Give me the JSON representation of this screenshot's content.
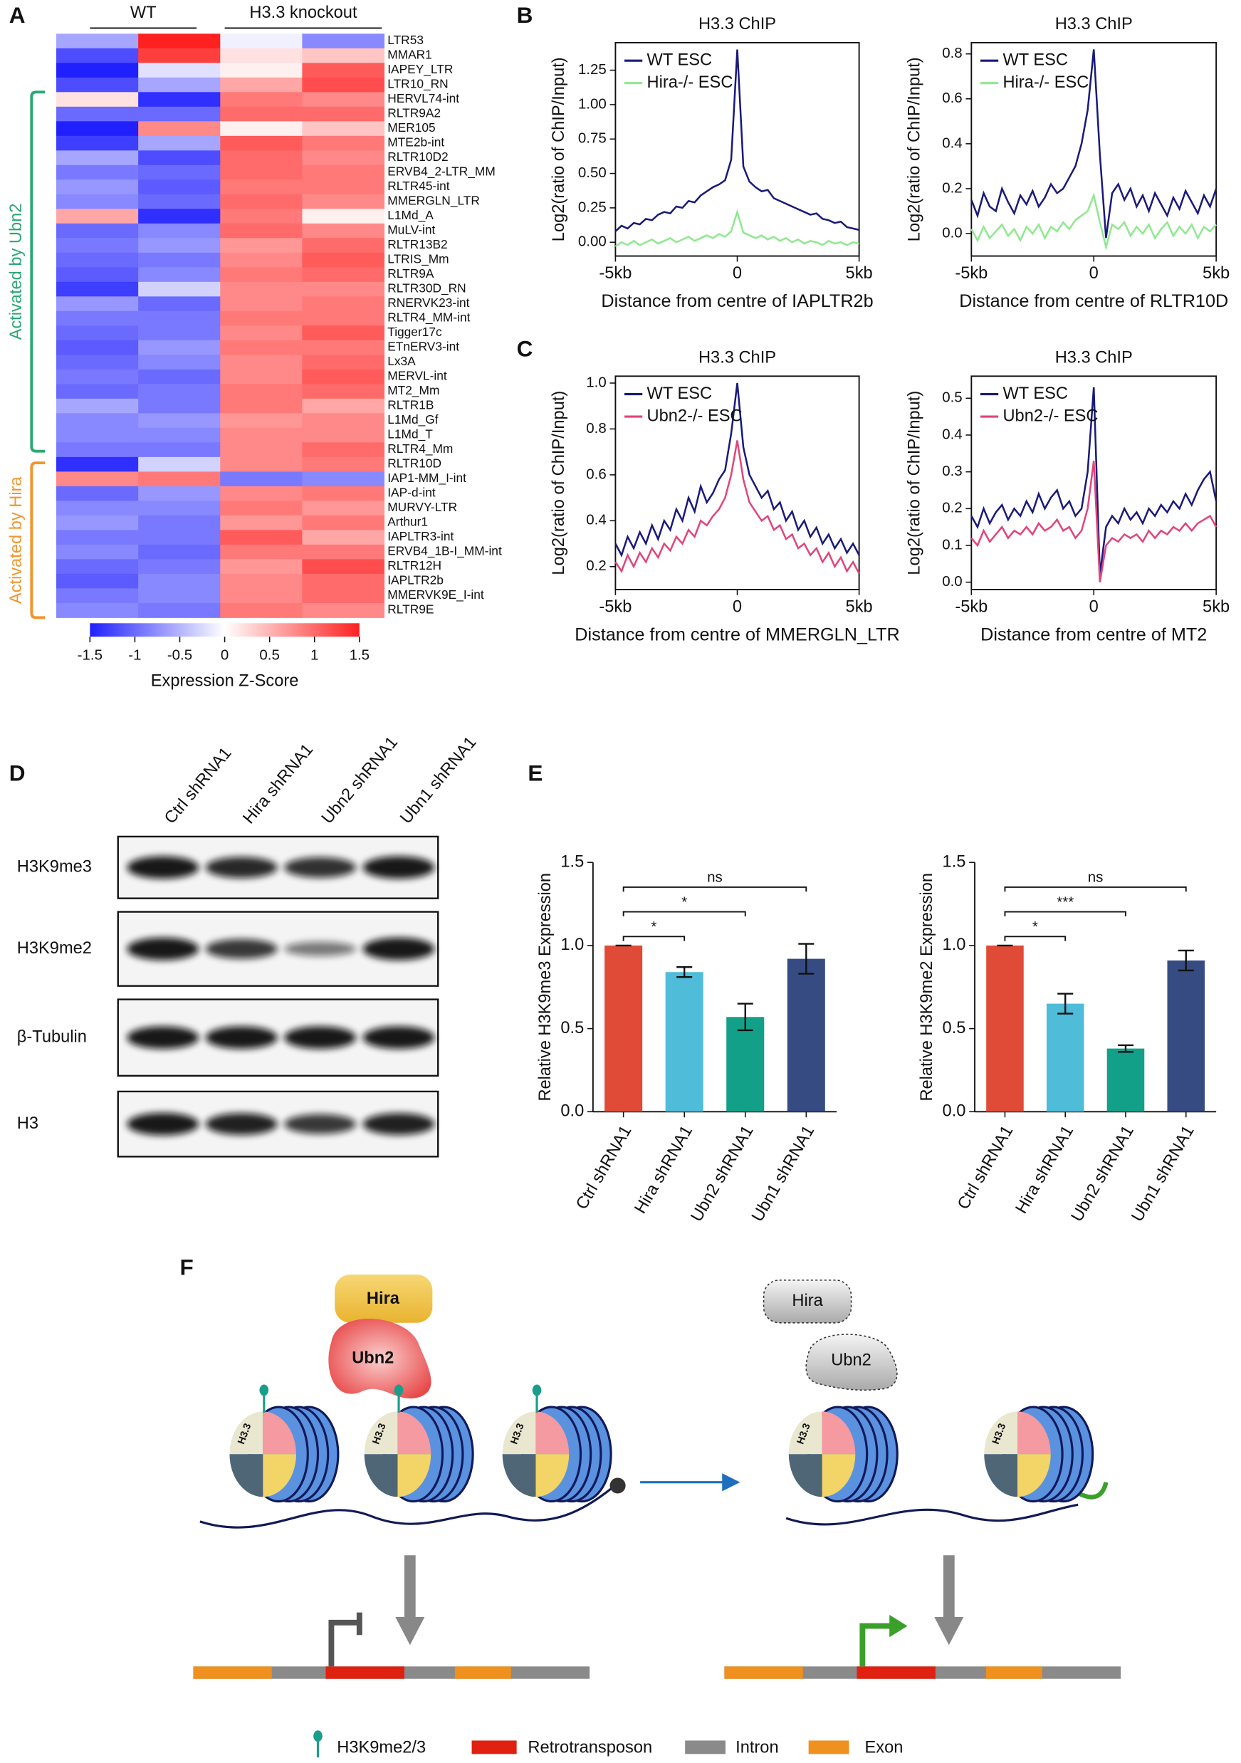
{
  "panel_labels": [
    "A",
    "B",
    "C",
    "D",
    "E",
    "F"
  ],
  "chart_data": [
    {
      "type": "heatmap",
      "column_groups": [
        "WT",
        "H3.3 knockout"
      ],
      "categories": [
        "LTR53",
        "MMAR1",
        "IAPEY_LTR",
        "LTR10_RN",
        "HERVL74-int",
        "RLTR9A2",
        "MER105",
        "MTE2b-int",
        "RLTR10D2",
        "ERVB4_2-LTR_MM",
        "RLTR45-int",
        "MMERGLN_LTR",
        "L1Md_A",
        "MuLV-int",
        "RLTR13B2",
        "LTRIS_Mm",
        "RLTR9A",
        "RLTR30D_RN",
        "RNERVK23-int",
        "RLTR4_MM-int",
        "Tigger17c",
        "ETnERV3-int",
        "Lx3A",
        "MERVL-int",
        "MT2_Mm",
        "RLTR1B",
        "L1Md_Gf",
        "L1Md_T",
        "RLTR4_Mm",
        "RLTR10D",
        "IAP1-MM_I-int",
        "IAP-d-int",
        "MURVY-LTR",
        "Arthur1",
        "IAPLTR3-int",
        "ERVB4_1B-I_MM-int",
        "RLTR12H",
        "IAPLTR2b",
        "MMERVK9E_I-int",
        "RLTR9E"
      ],
      "values": [
        [
          -0.6,
          1.5,
          -0.1,
          -0.8
        ],
        [
          -1.2,
          1.3,
          0.2,
          0.4
        ],
        [
          -1.5,
          -0.2,
          0.1,
          1.1
        ],
        [
          -1.2,
          -0.6,
          0.6,
          1.2
        ],
        [
          0.2,
          -1.4,
          0.9,
          0.8
        ],
        [
          -1.0,
          -1.0,
          1.0,
          1.0
        ],
        [
          -1.5,
          0.8,
          0.1,
          0.4
        ],
        [
          -1.3,
          -0.6,
          1.1,
          0.9
        ],
        [
          -0.6,
          -1.2,
          1.0,
          0.8
        ],
        [
          -0.9,
          -1.0,
          1.0,
          0.9
        ],
        [
          -0.7,
          -1.1,
          0.9,
          0.9
        ],
        [
          -0.8,
          -1.0,
          1.0,
          0.8
        ],
        [
          0.6,
          -1.4,
          0.9,
          0.1
        ],
        [
          -1.0,
          -0.8,
          1.0,
          0.8
        ],
        [
          -0.9,
          -0.7,
          0.7,
          1.0
        ],
        [
          -1.0,
          -0.9,
          0.8,
          1.1
        ],
        [
          -1.1,
          -0.8,
          0.9,
          1.0
        ],
        [
          -1.3,
          -0.3,
          0.8,
          0.8
        ],
        [
          -0.7,
          -1.0,
          0.8,
          0.9
        ],
        [
          -0.9,
          -0.9,
          0.9,
          0.9
        ],
        [
          -1.0,
          -0.9,
          0.8,
          1.1
        ],
        [
          -1.1,
          -0.7,
          0.9,
          0.9
        ],
        [
          -1.0,
          -0.8,
          0.8,
          1.0
        ],
        [
          -0.9,
          -1.0,
          0.8,
          1.1
        ],
        [
          -1.0,
          -0.9,
          0.9,
          1.0
        ],
        [
          -0.6,
          -0.9,
          0.9,
          0.6
        ],
        [
          -0.8,
          -0.7,
          0.7,
          0.8
        ],
        [
          -0.8,
          -0.8,
          0.8,
          0.8
        ],
        [
          -0.9,
          -0.9,
          0.8,
          1.0
        ],
        [
          -1.4,
          -0.3,
          0.8,
          0.9
        ],
        [
          0.8,
          0.9,
          -0.9,
          -0.8
        ],
        [
          -1.0,
          -0.7,
          0.8,
          0.9
        ],
        [
          -0.8,
          -0.8,
          0.9,
          0.7
        ],
        [
          -0.7,
          -0.9,
          0.7,
          0.9
        ],
        [
          -0.9,
          -0.9,
          1.1,
          0.6
        ],
        [
          -0.8,
          -1.0,
          0.9,
          0.9
        ],
        [
          -1.0,
          -0.9,
          0.7,
          1.2
        ],
        [
          -1.1,
          -0.8,
          0.8,
          1.0
        ],
        [
          -0.9,
          -0.8,
          0.8,
          1.0
        ],
        [
          -0.8,
          -0.9,
          0.9,
          0.8
        ]
      ],
      "groups": [
        {
          "label": "Activated by Ubn2",
          "color": "#2aa876"
        },
        {
          "label": "Activated by Hira",
          "color": "#f0962e"
        }
      ],
      "colorscale": [
        "#2020ff",
        "#ffffff",
        "#ff2020"
      ],
      "zlim": [
        -1.5,
        1.5
      ],
      "zticks": [
        -1.5,
        -1,
        -0.5,
        0,
        0.5,
        1,
        1.5
      ],
      "colorbar_title": "Expression Z-Score"
    },
    {
      "type": "line",
      "title": "H3.3 ChIP",
      "xlabel": "Distance from centre of IAPLTR2b",
      "ylabel": "Log2(ratio of ChIP/Input)",
      "legend": "upper left",
      "xlim": [
        -5,
        5
      ],
      "xticks": [
        {
          "value": -5,
          "label": "-5kb"
        },
        0,
        {
          "value": 5,
          "label": "5kb"
        }
      ],
      "ylim": [
        -0.1,
        1.45
      ],
      "yticks": [
        {
          "value": 0,
          "label": "0.00"
        },
        {
          "value": 0.25,
          "label": "0.25"
        },
        {
          "value": 0.5,
          "label": "0.50"
        },
        {
          "value": 0.75,
          "label": "0.75"
        },
        {
          "value": 1,
          "label": "1.00"
        },
        {
          "value": 1.25,
          "label": "1.25"
        }
      ],
      "x": [
        -5,
        -4.75,
        -4.5,
        -4.25,
        -4,
        -3.75,
        -3.5,
        -3.25,
        -3,
        -2.75,
        -2.5,
        -2.25,
        -2,
        -1.75,
        -1.5,
        -1.25,
        -1,
        -0.75,
        -0.5,
        -0.25,
        0,
        0.25,
        0.5,
        0.75,
        1,
        1.25,
        1.5,
        1.75,
        2,
        2.25,
        2.5,
        2.75,
        3,
        3.25,
        3.5,
        3.75,
        4,
        4.25,
        4.5,
        4.75,
        5
      ],
      "series": [
        {
          "name": "WT ESC",
          "color": "#1a1a7a",
          "values": [
            0.08,
            0.12,
            0.1,
            0.14,
            0.13,
            0.17,
            0.16,
            0.2,
            0.22,
            0.21,
            0.26,
            0.25,
            0.3,
            0.29,
            0.34,
            0.37,
            0.4,
            0.42,
            0.45,
            0.6,
            1.4,
            0.55,
            0.44,
            0.4,
            0.37,
            0.38,
            0.32,
            0.3,
            0.28,
            0.26,
            0.24,
            0.22,
            0.2,
            0.21,
            0.17,
            0.16,
            0.14,
            0.15,
            0.11,
            0.1,
            0.09
          ]
        },
        {
          "name": "Hira-/- ESC",
          "color": "#8fe88f",
          "values": [
            -0.03,
            0.0,
            -0.02,
            0.01,
            -0.02,
            0.0,
            0.02,
            -0.01,
            0.01,
            0.03,
            0.0,
            0.02,
            0.04,
            0.01,
            0.03,
            0.05,
            0.03,
            0.06,
            0.04,
            0.08,
            0.22,
            0.07,
            0.05,
            0.03,
            0.05,
            0.02,
            0.04,
            0.01,
            0.03,
            0.0,
            0.02,
            -0.01,
            0.01,
            0.0,
            -0.02,
            0.01,
            -0.01,
            0.0,
            -0.02,
            0.0,
            -0.01
          ]
        }
      ]
    },
    {
      "type": "line",
      "title": "H3.3 ChIP",
      "xlabel": "Distance from centre of RLTR10D",
      "ylabel": "Log2(ratio of ChIP/Input)",
      "legend": "upper left",
      "xlim": [
        -5,
        5
      ],
      "xticks": [
        {
          "value": -5,
          "label": "-5kb"
        },
        0,
        {
          "value": 5,
          "label": "5kb"
        }
      ],
      "ylim": [
        -0.1,
        0.85
      ],
      "yticks": [
        {
          "value": 0,
          "label": "0.0"
        },
        0.2,
        0.4,
        0.6,
        0.8
      ],
      "x": [
        -5,
        -4.75,
        -4.5,
        -4.25,
        -4,
        -3.75,
        -3.5,
        -3.25,
        -3,
        -2.75,
        -2.5,
        -2.25,
        -2,
        -1.75,
        -1.5,
        -1.25,
        -1,
        -0.75,
        -0.5,
        -0.25,
        0,
        0.25,
        0.5,
        0.75,
        1,
        1.25,
        1.5,
        1.75,
        2,
        2.25,
        2.5,
        2.75,
        3,
        3.25,
        3.5,
        3.75,
        4,
        4.25,
        4.5,
        4.75,
        5
      ],
      "series": [
        {
          "name": "WT ESC",
          "color": "#1a1a7a",
          "values": [
            0.15,
            0.08,
            0.18,
            0.12,
            0.1,
            0.2,
            0.14,
            0.09,
            0.17,
            0.13,
            0.19,
            0.12,
            0.16,
            0.22,
            0.18,
            0.2,
            0.25,
            0.3,
            0.4,
            0.55,
            0.82,
            0.35,
            -0.02,
            0.18,
            0.22,
            0.15,
            0.2,
            0.12,
            0.17,
            0.1,
            0.18,
            0.13,
            0.08,
            0.16,
            0.11,
            0.19,
            0.14,
            0.09,
            0.17,
            0.12,
            0.2
          ]
        },
        {
          "name": "Hira-/- ESC",
          "color": "#8fe88f",
          "values": [
            0.02,
            -0.03,
            0.03,
            -0.02,
            0.01,
            0.04,
            -0.01,
            0.02,
            -0.03,
            0.03,
            0.0,
            0.04,
            -0.02,
            0.03,
            0.01,
            0.05,
            0.02,
            0.06,
            0.08,
            0.1,
            0.17,
            0.05,
            -0.06,
            0.04,
            0.02,
            0.05,
            -0.01,
            0.03,
            0.0,
            0.04,
            -0.02,
            0.02,
            0.05,
            -0.01,
            0.03,
            0.0,
            0.04,
            -0.02,
            0.03,
            0.01,
            0.04
          ]
        }
      ]
    },
    {
      "type": "line",
      "title": "H3.3 ChIP",
      "xlabel": "Distance from centre of MMERGLN_LTR",
      "ylabel": "Log2(ratio of ChIP/Input)",
      "legend": "upper left",
      "xlim": [
        -5,
        5
      ],
      "xticks": [
        {
          "value": -5,
          "label": "-5kb"
        },
        0,
        {
          "value": 5,
          "label": "5kb"
        }
      ],
      "ylim": [
        0.1,
        1.03
      ],
      "yticks": [
        0.2,
        0.4,
        0.6,
        0.8,
        {
          "value": 1,
          "label": "1.0"
        }
      ],
      "x": [
        -5,
        -4.75,
        -4.5,
        -4.25,
        -4,
        -3.75,
        -3.5,
        -3.25,
        -3,
        -2.75,
        -2.5,
        -2.25,
        -2,
        -1.75,
        -1.5,
        -1.25,
        -1,
        -0.75,
        -0.5,
        -0.25,
        0,
        0.25,
        0.5,
        0.75,
        1,
        1.25,
        1.5,
        1.75,
        2,
        2.25,
        2.5,
        2.75,
        3,
        3.25,
        3.5,
        3.75,
        4,
        4.25,
        4.5,
        4.75,
        5
      ],
      "series": [
        {
          "name": "WT ESC",
          "color": "#1a1a7a",
          "values": [
            0.3,
            0.25,
            0.33,
            0.28,
            0.35,
            0.3,
            0.38,
            0.32,
            0.4,
            0.36,
            0.45,
            0.4,
            0.5,
            0.44,
            0.55,
            0.48,
            0.52,
            0.58,
            0.62,
            0.78,
            1.0,
            0.72,
            0.6,
            0.55,
            0.5,
            0.53,
            0.45,
            0.48,
            0.4,
            0.44,
            0.36,
            0.4,
            0.33,
            0.37,
            0.3,
            0.34,
            0.28,
            0.32,
            0.26,
            0.3,
            0.25
          ]
        },
        {
          "name": "Ubn2-/- ESC",
          "color": "#e0457b",
          "values": [
            0.22,
            0.18,
            0.25,
            0.2,
            0.26,
            0.22,
            0.28,
            0.24,
            0.3,
            0.27,
            0.33,
            0.3,
            0.36,
            0.33,
            0.4,
            0.38,
            0.42,
            0.45,
            0.5,
            0.6,
            0.75,
            0.58,
            0.48,
            0.44,
            0.4,
            0.42,
            0.36,
            0.38,
            0.32,
            0.34,
            0.28,
            0.3,
            0.25,
            0.28,
            0.22,
            0.26,
            0.2,
            0.24,
            0.18,
            0.22,
            0.17
          ]
        }
      ]
    },
    {
      "type": "line",
      "title": "H3.3 ChIP",
      "xlabel": "Distance from centre of MT2",
      "ylabel": "Log2(ratio of ChIP/Input)",
      "legend": "upper left",
      "xlim": [
        -5,
        5
      ],
      "xticks": [
        {
          "value": -5,
          "label": "-5kb"
        },
        0,
        {
          "value": 5,
          "label": "5kb"
        }
      ],
      "ylim": [
        -0.02,
        0.56
      ],
      "yticks": [
        {
          "value": 0,
          "label": "0.0"
        },
        0.1,
        0.2,
        0.3,
        0.4,
        0.5
      ],
      "x": [
        -5,
        -4.75,
        -4.5,
        -4.25,
        -4,
        -3.75,
        -3.5,
        -3.25,
        -3,
        -2.75,
        -2.5,
        -2.25,
        -2,
        -1.75,
        -1.5,
        -1.25,
        -1,
        -0.75,
        -0.5,
        -0.25,
        0,
        0.25,
        0.5,
        0.75,
        1,
        1.25,
        1.5,
        1.75,
        2,
        2.25,
        2.5,
        2.75,
        3,
        3.25,
        3.5,
        3.75,
        4,
        4.25,
        4.5,
        4.75,
        5
      ],
      "series": [
        {
          "name": "WT ESC",
          "color": "#1a1a7a",
          "values": [
            0.18,
            0.15,
            0.2,
            0.16,
            0.19,
            0.21,
            0.17,
            0.2,
            0.18,
            0.22,
            0.19,
            0.24,
            0.2,
            0.23,
            0.25,
            0.2,
            0.22,
            0.18,
            0.2,
            0.3,
            0.53,
            0.02,
            0.15,
            0.18,
            0.16,
            0.2,
            0.17,
            0.19,
            0.16,
            0.2,
            0.18,
            0.21,
            0.19,
            0.22,
            0.2,
            0.24,
            0.21,
            0.25,
            0.28,
            0.3,
            0.22
          ]
        },
        {
          "name": "Ubn2-/- ESC",
          "color": "#e0457b",
          "values": [
            0.12,
            0.1,
            0.14,
            0.11,
            0.13,
            0.15,
            0.12,
            0.14,
            0.13,
            0.15,
            0.13,
            0.16,
            0.14,
            0.15,
            0.17,
            0.14,
            0.15,
            0.12,
            0.14,
            0.2,
            0.33,
            0.0,
            0.1,
            0.12,
            0.11,
            0.13,
            0.12,
            0.13,
            0.11,
            0.14,
            0.12,
            0.14,
            0.13,
            0.15,
            0.14,
            0.16,
            0.14,
            0.16,
            0.17,
            0.18,
            0.15
          ]
        }
      ]
    },
    {
      "type": "bar",
      "ylabel": "Relative H3K9me3 Expression",
      "categories": [
        "Ctrl shRNA1",
        "Hira shRNA1",
        "Ubn2 shRNA1",
        "Ubn1 shRNA1"
      ],
      "values": [
        1.0,
        0.84,
        0.57,
        0.92
      ],
      "errors": [
        0,
        0.03,
        0.08,
        0.09
      ],
      "colors": [
        "#e04b37",
        "#4fbcd9",
        "#12a088",
        "#354b82"
      ],
      "ylim": [
        0,
        1.5
      ],
      "yticks": [
        {
          "value": 0,
          "label": "0.0"
        },
        {
          "value": 0.5,
          "label": "0.5"
        },
        {
          "value": 1,
          "label": "1.0"
        },
        {
          "value": 1.5,
          "label": "1.5"
        }
      ],
      "significance": [
        "*",
        "*",
        "ns"
      ]
    },
    {
      "type": "bar",
      "ylabel": "Relative H3K9me2 Expression",
      "categories": [
        "Ctrl shRNA1",
        "Hira shRNA1",
        "Ubn2 shRNA1",
        "Ubn1 shRNA1"
      ],
      "values": [
        1.0,
        0.65,
        0.38,
        0.91
      ],
      "errors": [
        0,
        0.06,
        0.02,
        0.06
      ],
      "colors": [
        "#e04b37",
        "#4fbcd9",
        "#12a088",
        "#354b82"
      ],
      "ylim": [
        0,
        1.5
      ],
      "yticks": [
        {
          "value": 0,
          "label": "0.0"
        },
        {
          "value": 0.5,
          "label": "0.5"
        },
        {
          "value": 1,
          "label": "1.0"
        },
        {
          "value": 1.5,
          "label": "1.5"
        }
      ],
      "significance": [
        "*",
        "***",
        "ns"
      ]
    }
  ],
  "blot": {
    "lanes": [
      "Ctrl shRNA1",
      "Hira shRNA1",
      "Ubn2 shRNA1",
      "Ubn1 shRNA1"
    ],
    "rows": [
      "H3K9me3",
      "H3K9me2",
      "β-Tubulin",
      "H3"
    ]
  },
  "diagram": {
    "proteins": [
      "Hira",
      "Ubn2"
    ],
    "nucleosome_label": "H3.3",
    "legend": [
      "H3K9me2/3",
      "Retrotransposon",
      "Intron",
      "Exon"
    ]
  }
}
